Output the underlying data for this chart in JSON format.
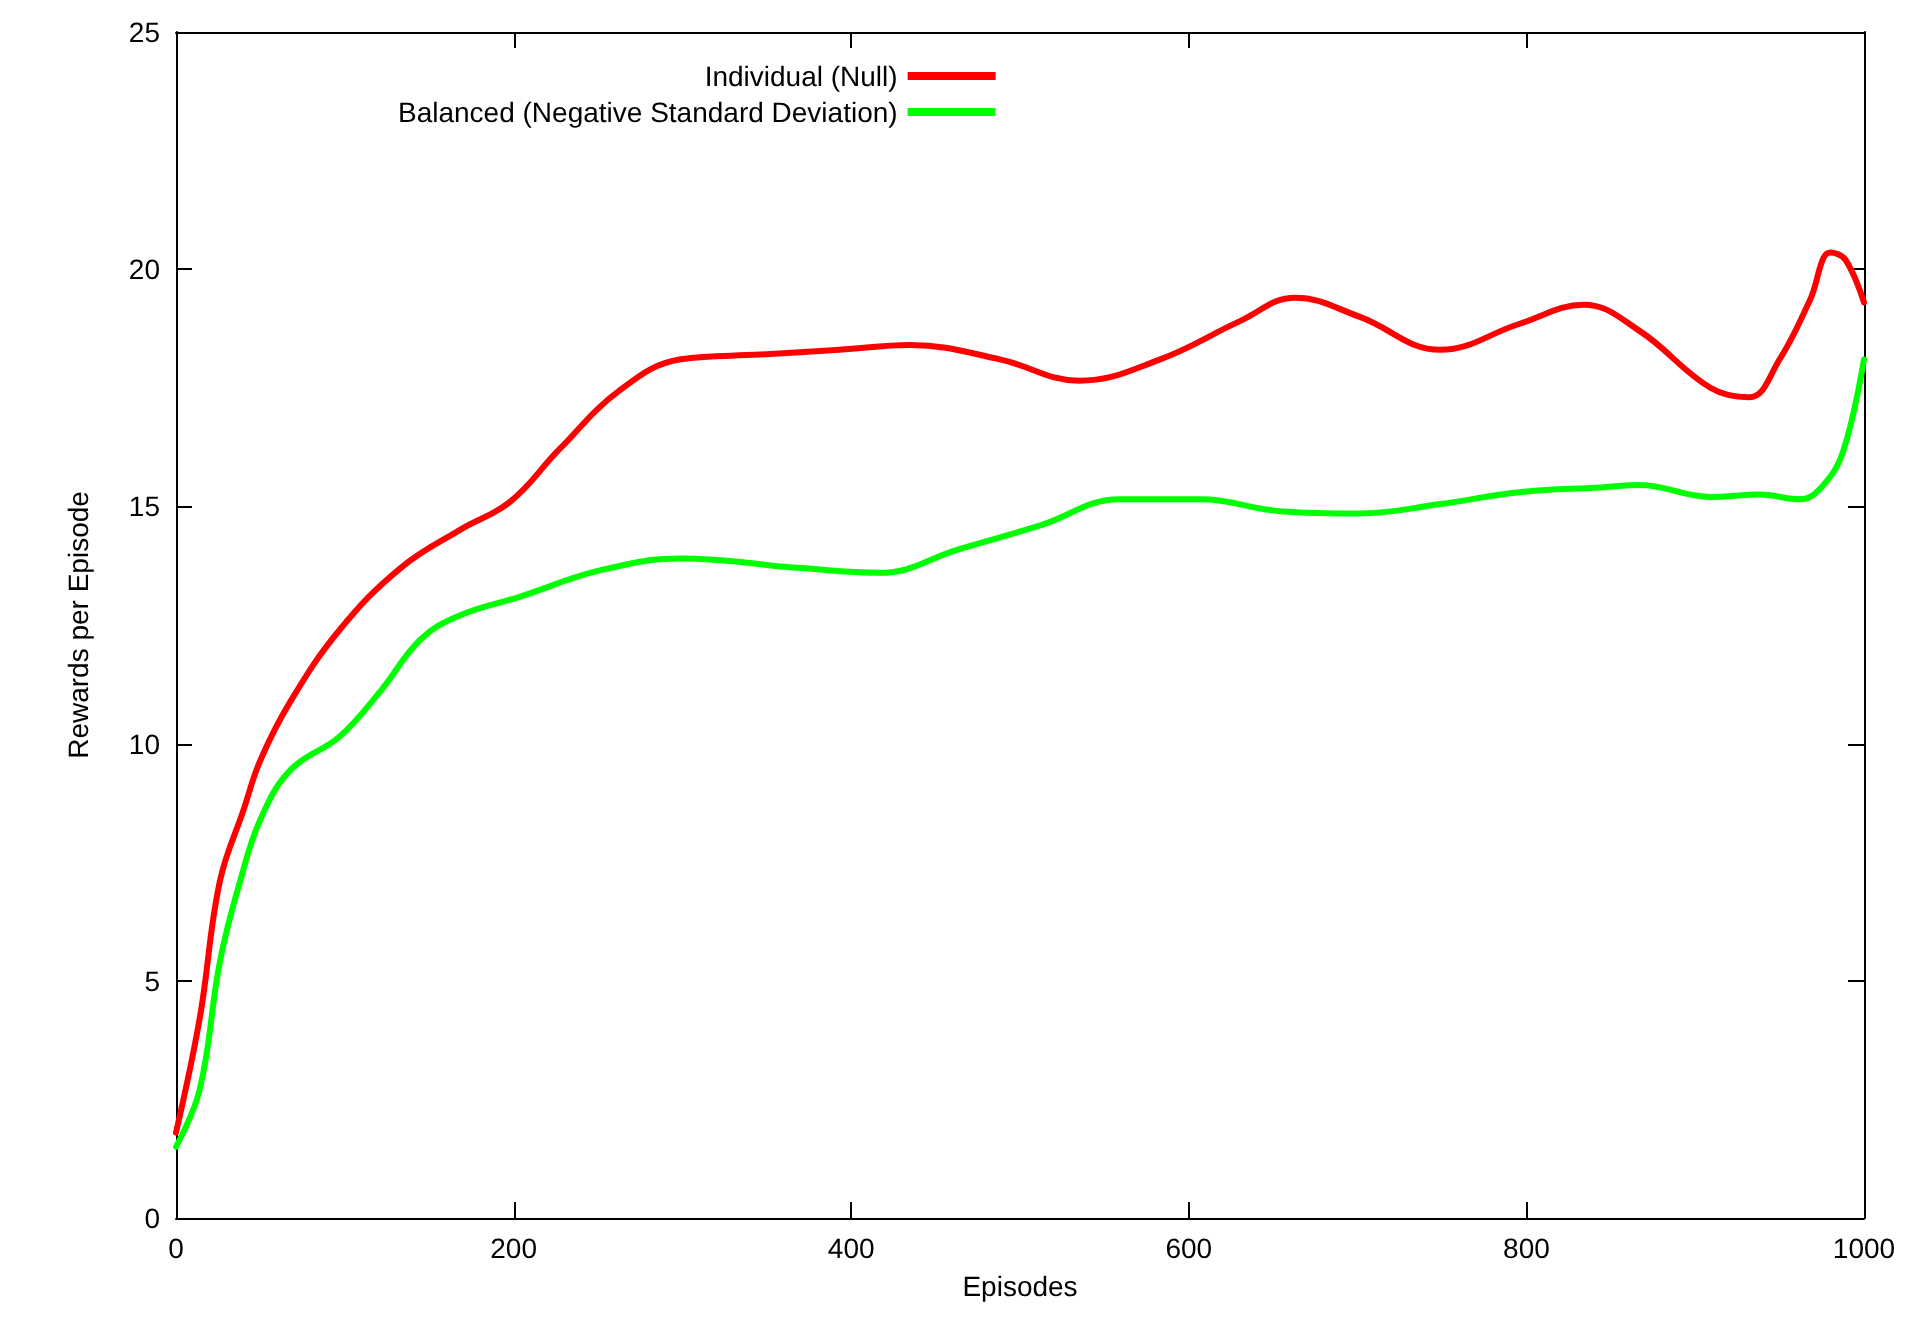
{
  "chart_data": {
    "type": "line",
    "xlabel": "Episodes",
    "ylabel": "Rewards per Episode",
    "xlim": [
      0,
      1000
    ],
    "xticks": [
      0,
      200,
      400,
      600,
      800,
      1000
    ],
    "ylim": [
      0,
      25
    ],
    "yticks": [
      0,
      5,
      10,
      15,
      20,
      25
    ],
    "grid": false,
    "legend": "top",
    "marker": "none",
    "line_style": "solid",
    "series": [
      {
        "name": "Individual (Null)",
        "color": "#ff0000",
        "x": [
          0,
          14,
          26,
          40,
          50,
          68,
          97,
          133,
          168,
          198,
          227,
          263,
          299,
          346,
          393,
          435,
          488,
          535,
          583,
          630,
          663,
          701,
          749,
          796,
          834,
          867,
          909,
          932,
          950,
          968,
          980,
          989,
          1000
        ],
        "values": [
          1.8,
          4.2,
          7.1,
          8.6,
          9.65,
          10.9,
          12.4,
          13.7,
          14.5,
          15.1,
          16.2,
          17.45,
          18.1,
          18.2,
          18.3,
          18.4,
          18.1,
          17.65,
          18.1,
          18.9,
          19.4,
          19.0,
          18.3,
          18.85,
          19.25,
          18.7,
          17.5,
          17.3,
          18.1,
          19.35,
          20.35,
          20.2,
          19.3
        ]
      },
      {
        "name": "Balanced (Negative Standard Deviation)",
        "color": "#00ff00",
        "x": [
          0,
          14,
          26,
          38,
          50,
          68,
          97,
          121,
          145,
          168,
          204,
          251,
          299,
          370,
          417,
          464,
          512,
          559,
          607,
          654,
          701,
          749,
          796,
          844,
          867,
          909,
          938,
          962,
          976,
          988,
          1000
        ],
        "values": [
          1.5,
          2.7,
          5.4,
          7.1,
          8.4,
          9.45,
          10.15,
          11.1,
          12.2,
          12.7,
          13.1,
          13.65,
          13.9,
          13.7,
          13.6,
          14.1,
          14.6,
          15.15,
          15.15,
          14.9,
          14.85,
          15.05,
          15.3,
          15.4,
          15.45,
          15.2,
          15.25,
          15.15,
          15.45,
          16.2,
          18.1
        ]
      }
    ]
  }
}
